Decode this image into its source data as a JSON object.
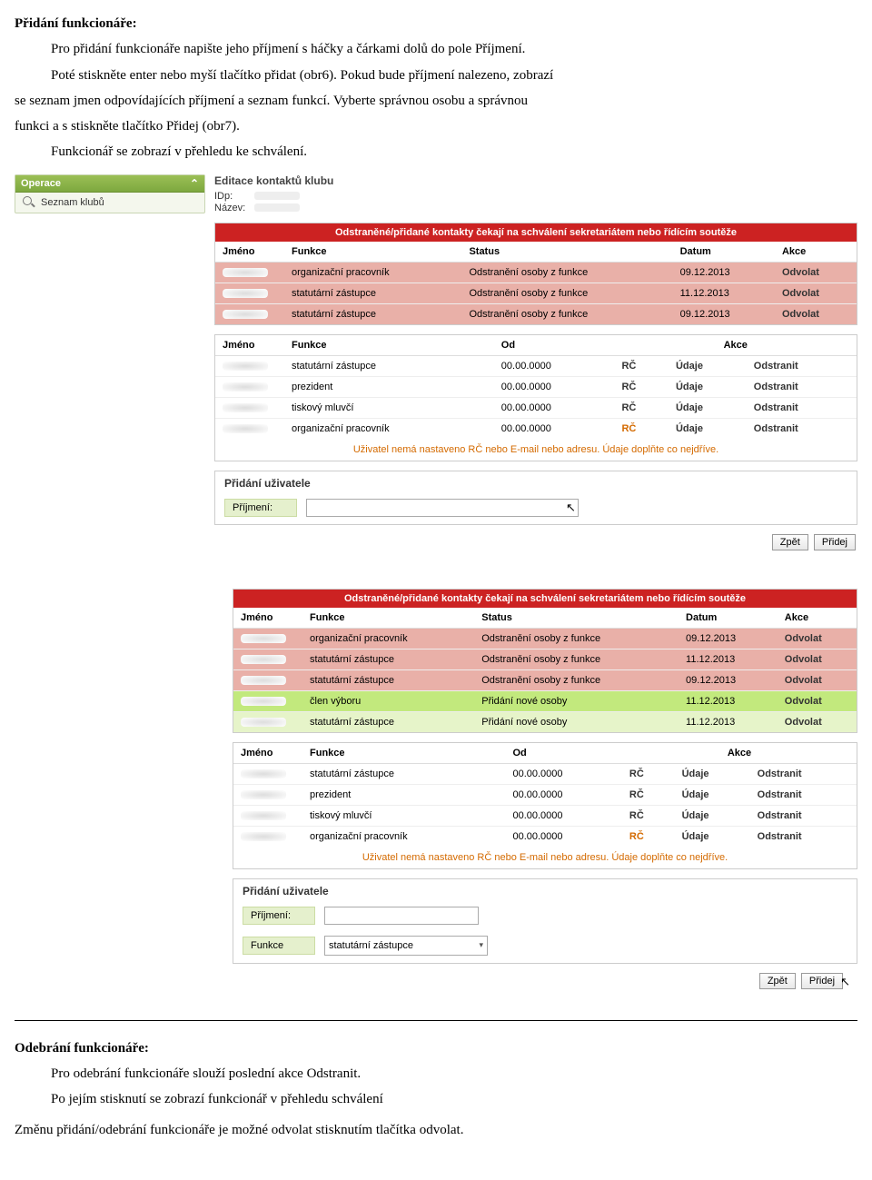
{
  "doc": {
    "h1": "Přidání funkcionáře:",
    "p1a": "Pro přidání funkcionáře napište jeho příjmení s háčky a čárkami dolů do pole Příjmení.",
    "p1b": "Poté stiskněte enter nebo myší tlačítko přidat (obr6). Pokud bude příjmení nalezeno, zobrazí",
    "p1c": "se seznam jmen odpovídajících příjmení a seznam funkcí. Vyberte správnou osobu a správnou",
    "p1d": "funkci a s stiskněte tlačítko Přidej (obr7).",
    "p1e": "Funkcionář se zobrazí v přehledu ke schválení.",
    "h2": "Odebrání funkcionáře:",
    "p2a": "Pro odebrání funkcionáře slouží poslední akce Odstranit.",
    "p2b": "Po jejím stisknutí se zobrazí funkcionář v přehledu schválení",
    "p3": "Změnu přidání/odebrání funkcionáře je možné odvolat stisknutím tlačítka odvolat."
  },
  "sidebar": {
    "title": "Operace",
    "item": "Seznam klubů"
  },
  "panel1": {
    "title": "Editace kontaktů klubu",
    "idp_label": "IDp:",
    "name_label": "Název:",
    "banner": "Odstraněné/přidané kontakty čekají na schválení sekretariátem nebo řídícím soutěže",
    "cols_pending": {
      "name": "Jméno",
      "func": "Funkce",
      "status": "Status",
      "date": "Datum",
      "action": "Akce"
    },
    "pending": [
      {
        "func": "organizační pracovník",
        "status": "Odstranění osoby z funkce",
        "date": "09.12.2013",
        "action": "Odvolat",
        "cls": "pinkrow"
      },
      {
        "func": "statutární zástupce",
        "status": "Odstranění osoby z funkce",
        "date": "11.12.2013",
        "action": "Odvolat",
        "cls": "pinkrow"
      },
      {
        "func": "statutární zástupce",
        "status": "Odstranění osoby z funkce",
        "date": "09.12.2013",
        "action": "Odvolat",
        "cls": "pinkrow"
      }
    ],
    "cols_list": {
      "name": "Jméno",
      "func": "Funkce",
      "od": "Od",
      "action": "Akce"
    },
    "list": [
      {
        "func": "statutární zástupce",
        "od": "00.00.0000",
        "rc": "RČ",
        "udaje": "Údaje",
        "del": "Odstranit",
        "warn": false
      },
      {
        "func": "prezident",
        "od": "00.00.0000",
        "rc": "RČ",
        "udaje": "Údaje",
        "del": "Odstranit",
        "warn": false
      },
      {
        "func": "tiskový mluvčí",
        "od": "00.00.0000",
        "rc": "RČ",
        "udaje": "Údaje",
        "del": "Odstranit",
        "warn": false
      },
      {
        "func": "organizační pracovník",
        "od": "00.00.0000",
        "rc": "RČ",
        "udaje": "Údaje",
        "del": "Odstranit",
        "warn": true
      }
    ],
    "warning": "Uživatel nemá nastaveno RČ nebo E-mail nebo adresu. Údaje doplňte co nejdříve.",
    "add_title": "Přidání uživatele",
    "add_label": "Příjmení:",
    "btn_back": "Zpět",
    "btn_add": "Přidej"
  },
  "panel2": {
    "banner": "Odstraněné/přidané kontakty čekají na schválení sekretariátem nebo řídícím soutěže",
    "cols_pending": {
      "name": "Jméno",
      "func": "Funkce",
      "status": "Status",
      "date": "Datum",
      "action": "Akce"
    },
    "pending": [
      {
        "func": "organizační pracovník",
        "status": "Odstranění osoby z funkce",
        "date": "09.12.2013",
        "action": "Odvolat",
        "cls": "pinkrow"
      },
      {
        "func": "statutární zástupce",
        "status": "Odstranění osoby z funkce",
        "date": "11.12.2013",
        "action": "Odvolat",
        "cls": "pinkrow"
      },
      {
        "func": "statutární zástupce",
        "status": "Odstranění osoby z funkce",
        "date": "09.12.2013",
        "action": "Odvolat",
        "cls": "pinkrow"
      },
      {
        "func": "člen výboru",
        "status": "Přidání nové osoby",
        "date": "11.12.2013",
        "action": "Odvolat",
        "cls": "greenrow"
      },
      {
        "func": "statutární zástupce",
        "status": "Přidání nové osoby",
        "date": "11.12.2013",
        "action": "Odvolat",
        "cls": "lightgreenrow"
      }
    ],
    "cols_list": {
      "name": "Jméno",
      "func": "Funkce",
      "od": "Od",
      "action": "Akce"
    },
    "list": [
      {
        "func": "statutární zástupce",
        "od": "00.00.0000",
        "rc": "RČ",
        "udaje": "Údaje",
        "del": "Odstranit",
        "warn": false
      },
      {
        "func": "prezident",
        "od": "00.00.0000",
        "rc": "RČ",
        "udaje": "Údaje",
        "del": "Odstranit",
        "warn": false
      },
      {
        "func": "tiskový mluvčí",
        "od": "00.00.0000",
        "rc": "RČ",
        "udaje": "Údaje",
        "del": "Odstranit",
        "warn": false
      },
      {
        "func": "organizační pracovník",
        "od": "00.00.0000",
        "rc": "RČ",
        "udaje": "Údaje",
        "del": "Odstranit",
        "warn": true
      }
    ],
    "warning": "Uživatel nemá nastaveno RČ nebo E-mail nebo adresu. Údaje doplňte co nejdříve.",
    "add_title": "Přidání uživatele",
    "label_surname": "Příjmení:",
    "label_func": "Funkce",
    "select_value": "statutární zástupce",
    "btn_back": "Zpět",
    "btn_add": "Přidej"
  }
}
